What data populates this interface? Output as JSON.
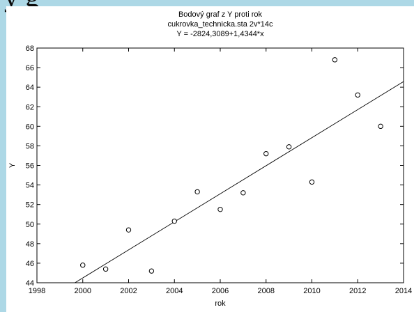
{
  "slide": {
    "heading_fragment": "y g"
  },
  "chart_data": {
    "type": "scatter",
    "title_lines": [
      "Bodový graf z Y proti rok",
      "cukrovka_technicka.sta 2v*14c",
      "Y = -2824,3089+1,4344*x"
    ],
    "xlabel": "rok",
    "ylabel": "Y",
    "xlim": [
      1998,
      2014
    ],
    "ylim": [
      44,
      68
    ],
    "x_ticks": [
      1998,
      2000,
      2002,
      2004,
      2006,
      2008,
      2010,
      2012,
      2014
    ],
    "y_ticks": [
      44,
      46,
      48,
      50,
      52,
      54,
      56,
      58,
      60,
      62,
      64,
      66,
      68
    ],
    "grid": false,
    "fit_line": {
      "intercept": -2824.3089,
      "slope": 1.4344
    },
    "points": [
      {
        "x": 2000,
        "y": 45.8
      },
      {
        "x": 2001,
        "y": 45.4
      },
      {
        "x": 2002,
        "y": 49.4
      },
      {
        "x": 2003,
        "y": 45.2
      },
      {
        "x": 2004,
        "y": 50.3
      },
      {
        "x": 2005,
        "y": 53.3
      },
      {
        "x": 2006,
        "y": 51.5
      },
      {
        "x": 2007,
        "y": 53.2
      },
      {
        "x": 2008,
        "y": 57.2
      },
      {
        "x": 2009,
        "y": 57.9
      },
      {
        "x": 2010,
        "y": 54.3
      },
      {
        "x": 2011,
        "y": 66.8
      },
      {
        "x": 2012,
        "y": 63.2
      },
      {
        "x": 2013,
        "y": 60.0
      }
    ]
  }
}
